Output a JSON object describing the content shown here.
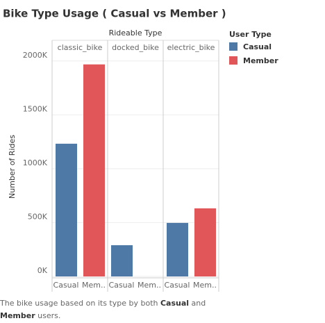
{
  "chart_data": {
    "type": "bar",
    "title": "Bike Type Usage ( Casual vs Member )",
    "column_header": "Rideable Type",
    "facets": [
      "classic_bike",
      "docked_bike",
      "electric_bike"
    ],
    "x_labels": [
      "Casual",
      "Mem.."
    ],
    "y_label": "Number of Rides",
    "legend_title": "User Type",
    "series": [
      {
        "name": "Casual",
        "color": "#4e79a7",
        "values": [
          1232000,
          290000,
          497000
        ]
      },
      {
        "name": "Member",
        "color": "#e15759",
        "values": [
          1968000,
          null,
          632000
        ]
      }
    ],
    "ylim": [
      0,
      2050000
    ],
    "yticks": [
      {
        "value": 0,
        "label": "0K"
      },
      {
        "value": 500000,
        "label": "500K"
      },
      {
        "value": 1000000,
        "label": "1000K"
      },
      {
        "value": 1500000,
        "label": "1500K"
      },
      {
        "value": 2000000,
        "label": "2000K"
      }
    ],
    "grid": true,
    "caption": [
      "The bike usage based on its type by both ",
      "Casual",
      " and ",
      "Member",
      " users."
    ]
  }
}
